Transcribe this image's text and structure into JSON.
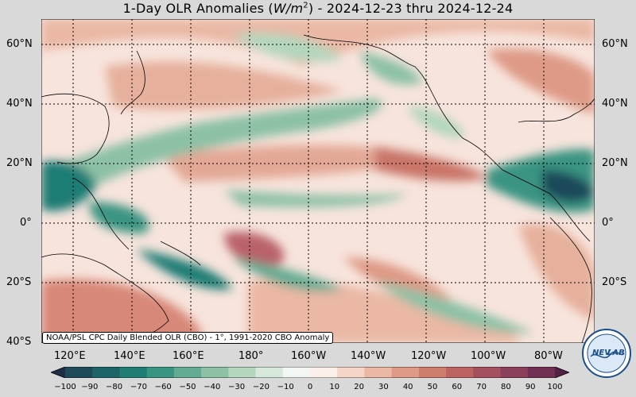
{
  "title": {
    "prefix": "1-Day OLR Anomalies (",
    "unit_main": "W/m",
    "unit_exp": "2",
    "suffix": ") - 2024-12-23 thru 2024-12-24"
  },
  "source_note": "NOAA/PSL CPC Daily Blended OLR (CBO) - 1°, 1991-2020 CBO Anomaly",
  "lat_labels": [
    "60°N",
    "40°N",
    "20°N",
    "0°",
    "20°S",
    "40°S"
  ],
  "lon_labels": [
    "120°E",
    "140°E",
    "160°E",
    "180°",
    "160°W",
    "140°W",
    "120°W",
    "100°W",
    "80°W"
  ],
  "colorbar": {
    "ticks": [
      "−100",
      "−90",
      "−80",
      "−70",
      "−60",
      "−50",
      "−40",
      "−30",
      "−20",
      "−10",
      "0",
      "10",
      "20",
      "30",
      "40",
      "50",
      "60",
      "70",
      "80",
      "90",
      "100"
    ],
    "colors": [
      "#1f2d45",
      "#1f4a5a",
      "#1d6468",
      "#1f7d74",
      "#3a9482",
      "#64ab93",
      "#8cc1a6",
      "#b3d6bd",
      "#d6e9da",
      "#f3f7f3",
      "#fbf0ea",
      "#f4d5c8",
      "#eab8a4",
      "#de9a86",
      "#cf7e6d",
      "#bd6462",
      "#a5505f",
      "#8c3f5b",
      "#702f52",
      "#531f44"
    ]
  },
  "logo": {
    "top_text": "NOAA PHYSICAL SCIENCES LABORATORY",
    "mark_left": "NEV",
    "mark_right": "LAB"
  }
}
